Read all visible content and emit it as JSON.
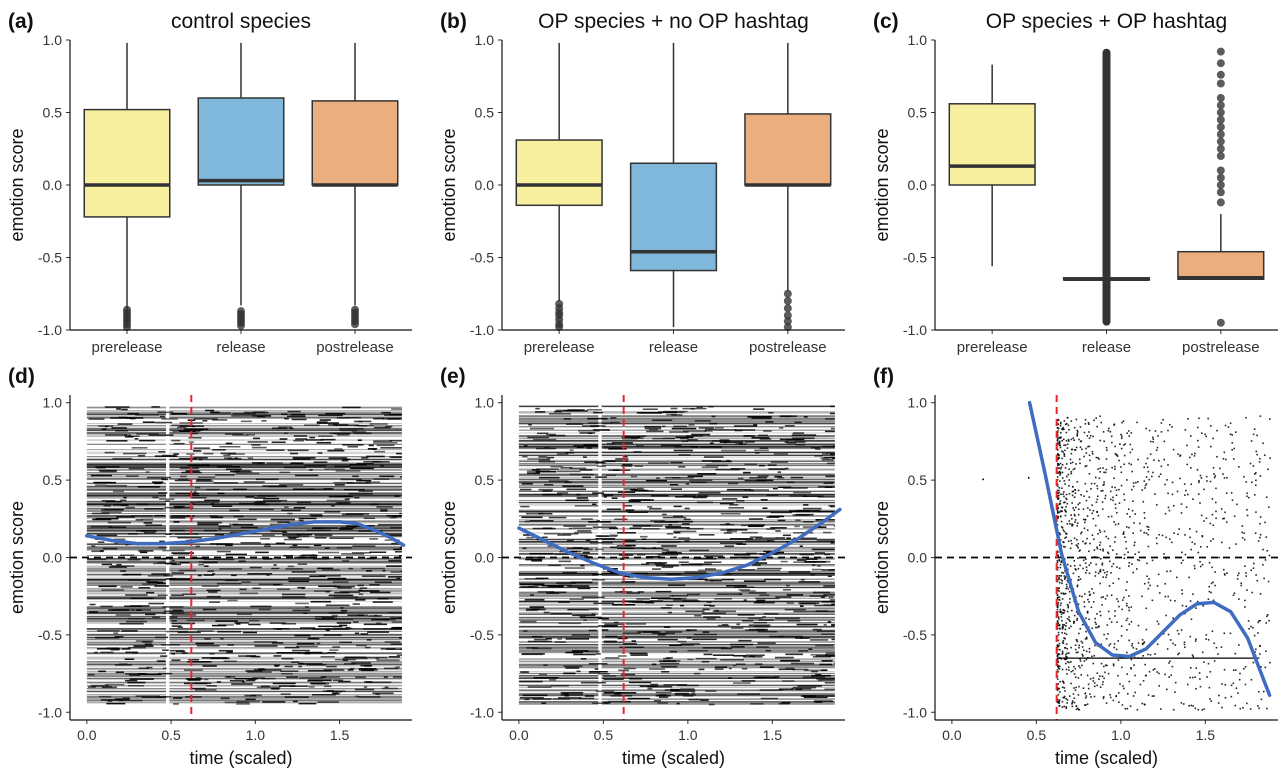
{
  "colors": {
    "prerelease": "#F6F09E",
    "release": "#7FB8DA",
    "postrelease": "#EBAE7E",
    "smooth": "#3F6CC0",
    "release_line": "#E8272A",
    "points": "#000000"
  },
  "chart_data": [
    {
      "tag": "(a)",
      "type": "box",
      "title": "control species",
      "xlabel": "",
      "ylabel": "emotion score",
      "ylim": [
        -1.0,
        1.0
      ],
      "yticks": [
        "-1.0",
        "-0.5",
        "0.0",
        "0.5",
        "1.0"
      ],
      "categories": [
        "prerelease",
        "release",
        "postrelease"
      ],
      "boxes": [
        {
          "whisker_low": -0.98,
          "q1": -0.22,
          "median": 0.0,
          "q3": 0.52,
          "whisker_high": 0.98,
          "outliers": [
            -0.86,
            -0.88,
            -0.9,
            -0.92,
            -0.94,
            -0.96,
            -0.98
          ]
        },
        {
          "whisker_low": -0.83,
          "q1": 0.0,
          "median": 0.03,
          "q3": 0.6,
          "whisker_high": 0.98,
          "outliers": [
            -0.87,
            -0.89,
            -0.91,
            -0.93,
            -0.95,
            -0.97
          ]
        },
        {
          "whisker_low": -0.83,
          "q1": 0.0,
          "median": 0.0,
          "q3": 0.58,
          "whisker_high": 0.98,
          "outliers": [
            -0.86,
            -0.88,
            -0.9,
            -0.92,
            -0.94,
            -0.96
          ]
        }
      ]
    },
    {
      "tag": "(b)",
      "type": "box",
      "title": "OP species + no OP hashtag",
      "xlabel": "",
      "ylabel": "emotion score",
      "ylim": [
        -1.0,
        1.0
      ],
      "yticks": [
        "-1.0",
        "-0.5",
        "0.0",
        "0.5",
        "1.0"
      ],
      "categories": [
        "prerelease",
        "release",
        "postrelease"
      ],
      "boxes": [
        {
          "whisker_low": -0.8,
          "q1": -0.14,
          "median": 0.0,
          "q3": 0.31,
          "whisker_high": 0.98,
          "outliers": [
            -0.82,
            -0.85,
            -0.88,
            -0.9,
            -0.93,
            -0.96,
            -0.98
          ]
        },
        {
          "whisker_low": -0.98,
          "q1": -0.59,
          "median": -0.46,
          "q3": 0.15,
          "whisker_high": 0.98,
          "outliers": []
        },
        {
          "whisker_low": -0.73,
          "q1": 0.0,
          "median": 0.0,
          "q3": 0.49,
          "whisker_high": 0.98,
          "outliers": [
            -0.75,
            -0.8,
            -0.85,
            -0.9,
            -0.94,
            -0.98
          ]
        }
      ]
    },
    {
      "tag": "(c)",
      "type": "box",
      "title": "OP species + OP hashtag",
      "xlabel": "",
      "ylabel": "emotion score",
      "ylim": [
        -1.0,
        1.0
      ],
      "yticks": [
        "-1.0",
        "-0.5",
        "0.0",
        "0.5",
        "1.0"
      ],
      "categories": [
        "prerelease",
        "release",
        "postrelease"
      ],
      "boxes": [
        {
          "whisker_low": -0.56,
          "q1": 0.0,
          "median": 0.13,
          "q3": 0.56,
          "whisker_high": 0.83,
          "outliers": []
        },
        {
          "whisker_low": -0.65,
          "q1": -0.65,
          "median": -0.65,
          "q3": -0.64,
          "whisker_high": -0.64,
          "outliers_range": [
            -0.97,
            0.94
          ]
        },
        {
          "whisker_low": -0.65,
          "q1": -0.65,
          "median": -0.64,
          "q3": -0.46,
          "whisker_high": -0.2,
          "outliers": [
            -0.95,
            -0.12,
            -0.05,
            0.0,
            0.05,
            0.1,
            0.2,
            0.25,
            0.3,
            0.35,
            0.4,
            0.45,
            0.5,
            0.55,
            0.6,
            0.7,
            0.76,
            0.84,
            0.92
          ]
        }
      ]
    },
    {
      "tag": "(d)",
      "type": "scatter",
      "title": "",
      "xlabel": "time (scaled)",
      "ylabel": "emotion score",
      "xlim": [
        -0.1,
        1.93
      ],
      "ylim": [
        -1.05,
        1.05
      ],
      "xticks": [
        "0.0",
        "0.5",
        "1.0",
        "1.5"
      ],
      "yticks": [
        "-1.0",
        "-0.5",
        "0.0",
        "0.5",
        "1.0"
      ],
      "release_x": 0.62,
      "hline_y": 0.0,
      "points_density": "dense",
      "x_range": [
        0.0,
        1.87
      ],
      "gap_x": 0.48,
      "smooth": {
        "x": [
          0.0,
          0.15,
          0.3,
          0.45,
          0.6,
          0.75,
          0.9,
          1.05,
          1.2,
          1.35,
          1.5,
          1.6,
          1.7,
          1.8,
          1.88
        ],
        "y": [
          0.14,
          0.11,
          0.09,
          0.09,
          0.1,
          0.12,
          0.15,
          0.18,
          0.21,
          0.23,
          0.23,
          0.22,
          0.18,
          0.13,
          0.08
        ]
      }
    },
    {
      "tag": "(e)",
      "type": "scatter",
      "title": "",
      "xlabel": "time (scaled)",
      "ylabel": "emotion score",
      "xlim": [
        -0.1,
        1.93
      ],
      "ylim": [
        -1.05,
        1.05
      ],
      "xticks": [
        "0.0",
        "0.5",
        "1.0",
        "1.5"
      ],
      "yticks": [
        "-1.0",
        "-0.5",
        "0.0",
        "0.5",
        "1.0"
      ],
      "release_x": 0.62,
      "hline_y": 0.0,
      "points_density": "dense",
      "x_range": [
        0.0,
        1.87
      ],
      "gap_x": 0.48,
      "smooth": {
        "x": [
          0.0,
          0.15,
          0.3,
          0.45,
          0.6,
          0.75,
          0.9,
          1.05,
          1.2,
          1.35,
          1.5,
          1.65,
          1.8,
          1.9
        ],
        "y": [
          0.19,
          0.11,
          0.03,
          -0.04,
          -0.1,
          -0.13,
          -0.14,
          -0.13,
          -0.1,
          -0.05,
          0.03,
          0.12,
          0.23,
          0.31
        ]
      }
    },
    {
      "tag": "(f)",
      "type": "scatter",
      "title": "",
      "xlabel": "time (scaled)",
      "ylabel": "emotion score",
      "xlim": [
        -0.1,
        1.93
      ],
      "ylim": [
        -1.05,
        1.05
      ],
      "xticks": [
        "0.0",
        "0.5",
        "1.0",
        "1.5"
      ],
      "yticks": [
        "-1.0",
        "-0.5",
        "0.0",
        "0.5",
        "1.0"
      ],
      "release_x": 0.62,
      "hline_y": 0.0,
      "points_density": "sparse",
      "x_range": [
        0.62,
        1.88
      ],
      "smooth": {
        "x": [
          0.46,
          0.55,
          0.65,
          0.75,
          0.85,
          0.95,
          1.05,
          1.15,
          1.25,
          1.35,
          1.45,
          1.55,
          1.65,
          1.75,
          1.88
        ],
        "y": [
          1.0,
          0.55,
          0.02,
          -0.35,
          -0.55,
          -0.63,
          -0.64,
          -0.59,
          -0.48,
          -0.37,
          -0.3,
          -0.29,
          -0.35,
          -0.52,
          -0.89
        ]
      }
    }
  ]
}
